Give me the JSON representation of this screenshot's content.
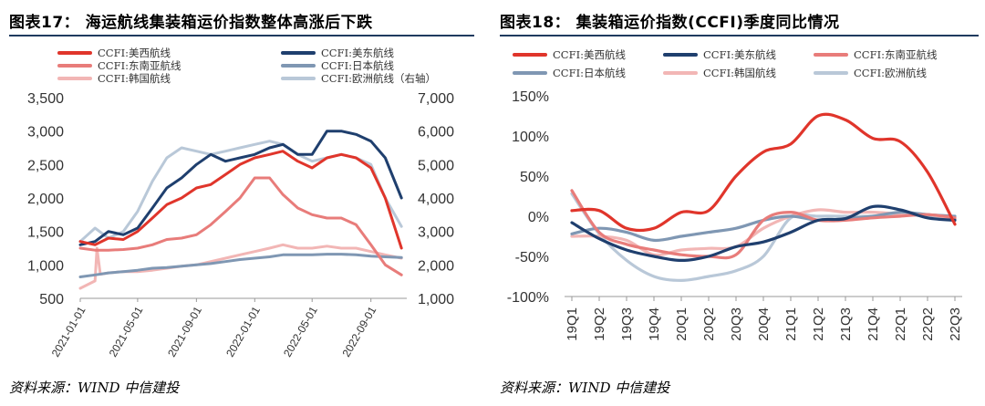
{
  "left": {
    "title": "图表17：  海运航线集装箱运价指数整体高涨后下跌",
    "source": "资料来源：WIND    中信建投",
    "legend": [
      {
        "name": "CCFI:美西航线",
        "color": "#e0352b"
      },
      {
        "name": "CCFI:美东航线",
        "color": "#1f3f6e"
      },
      {
        "name": "CCFI:东南亚航线",
        "color": "#e87c7a"
      },
      {
        "name": "CCFI:日本航线",
        "color": "#7f97b3"
      },
      {
        "name": "CCFI:韩国航线",
        "color": "#f2b6b5"
      },
      {
        "name": "CCFI:欧洲航线（右轴）",
        "color": "#b9c8d8"
      }
    ]
  },
  "right": {
    "title": "图表18：  集装箱运价指数(CCFI)季度同比情况",
    "source": "资料来源：WIND    中信建投",
    "legend": [
      {
        "name": "CCFI:美西航线",
        "color": "#e0352b"
      },
      {
        "name": "CCFI:美东航线",
        "color": "#1f3f6e"
      },
      {
        "name": "CCFI:东南亚航线",
        "color": "#e87c7a"
      },
      {
        "name": "CCFI:日本航线",
        "color": "#7f97b3"
      },
      {
        "name": "CCFI:韩国航线",
        "color": "#f2b6b5"
      },
      {
        "name": "CCFI:欧洲航线",
        "color": "#b9c8d8"
      }
    ]
  },
  "chart_data": [
    {
      "type": "line",
      "x_type": "date",
      "x_ticks": [
        "2021-01-01",
        "2021-05-01",
        "2021-09-01",
        "2022-01-01",
        "2022-05-01",
        "2022-09-01"
      ],
      "ylim": [
        500,
        3500
      ],
      "y_ticks": [
        500,
        1000,
        1500,
        2000,
        2500,
        3000,
        3500
      ],
      "y2lim": [
        1000,
        7000
      ],
      "y2_ticks": [
        1000,
        2000,
        3000,
        4000,
        5000,
        6000,
        7000
      ],
      "grid": false,
      "legend_position": "top",
      "series": [
        {
          "name": "CCFI:美西航线",
          "color": "#e0352b",
          "axis": "left",
          "x": [
            "2021-01-01",
            "2021-02-01",
            "2021-03-01",
            "2021-04-01",
            "2021-05-01",
            "2021-06-01",
            "2021-07-01",
            "2021-08-01",
            "2021-09-01",
            "2021-10-01",
            "2021-11-01",
            "2021-12-01",
            "2022-01-01",
            "2022-02-01",
            "2022-03-01",
            "2022-04-01",
            "2022-05-01",
            "2022-06-01",
            "2022-07-01",
            "2022-08-01",
            "2022-09-01",
            "2022-10-01",
            "2022-11-04"
          ],
          "y": [
            1350,
            1300,
            1400,
            1380,
            1500,
            1700,
            1900,
            2000,
            2150,
            2200,
            2350,
            2500,
            2600,
            2650,
            2700,
            2550,
            2450,
            2600,
            2650,
            2600,
            2450,
            2000,
            1250
          ]
        },
        {
          "name": "CCFI:美东航线",
          "color": "#1f3f6e",
          "axis": "left",
          "x": [
            "2021-01-01",
            "2021-02-01",
            "2021-03-01",
            "2021-04-01",
            "2021-05-01",
            "2021-06-01",
            "2021-07-01",
            "2021-08-01",
            "2021-09-01",
            "2021-10-01",
            "2021-11-01",
            "2021-12-01",
            "2022-01-01",
            "2022-02-01",
            "2022-03-01",
            "2022-04-01",
            "2022-05-01",
            "2022-06-01",
            "2022-07-01",
            "2022-08-01",
            "2022-09-01",
            "2022-10-01",
            "2022-11-04"
          ],
          "y": [
            1300,
            1350,
            1500,
            1450,
            1550,
            1850,
            2150,
            2300,
            2500,
            2650,
            2550,
            2600,
            2650,
            2750,
            2800,
            2650,
            2650,
            3000,
            3000,
            2950,
            2850,
            2600,
            2000
          ]
        },
        {
          "name": "CCFI:东南亚航线",
          "color": "#e87c7a",
          "axis": "left",
          "x": [
            "2021-01-01",
            "2021-02-01",
            "2021-03-01",
            "2021-04-01",
            "2021-05-01",
            "2021-06-01",
            "2021-07-01",
            "2021-08-01",
            "2021-09-01",
            "2021-10-01",
            "2021-11-01",
            "2021-12-01",
            "2022-01-01",
            "2022-02-01",
            "2022-03-01",
            "2022-04-01",
            "2022-05-01",
            "2022-06-01",
            "2022-07-01",
            "2022-08-01",
            "2022-09-01",
            "2022-10-01",
            "2022-11-04"
          ],
          "y": [
            1250,
            1220,
            1220,
            1230,
            1250,
            1300,
            1380,
            1400,
            1450,
            1600,
            1800,
            2000,
            2300,
            2300,
            2050,
            1850,
            1750,
            1700,
            1700,
            1600,
            1300,
            1000,
            850
          ]
        },
        {
          "name": "CCFI:日本航线",
          "color": "#7f97b3",
          "axis": "left",
          "x": [
            "2021-01-01",
            "2021-02-01",
            "2021-03-01",
            "2021-04-01",
            "2021-05-01",
            "2021-06-01",
            "2021-07-01",
            "2021-08-01",
            "2021-09-01",
            "2021-10-01",
            "2021-11-01",
            "2021-12-01",
            "2022-01-01",
            "2022-02-01",
            "2022-03-01",
            "2022-04-01",
            "2022-05-01",
            "2022-06-01",
            "2022-07-01",
            "2022-08-01",
            "2022-09-01",
            "2022-10-01",
            "2022-11-04"
          ],
          "y": [
            820,
            850,
            880,
            900,
            920,
            950,
            960,
            980,
            1000,
            1020,
            1050,
            1080,
            1100,
            1120,
            1150,
            1150,
            1150,
            1160,
            1160,
            1150,
            1130,
            1120,
            1110
          ]
        },
        {
          "name": "CCFI:韩国航线",
          "color": "#f2b6b5",
          "axis": "left",
          "x": [
            "2021-01-01",
            "2021-02-01",
            "2021-02-05",
            "2021-02-12",
            "2021-03-01",
            "2021-04-01",
            "2021-05-01",
            "2021-06-01",
            "2021-07-01",
            "2021-08-01",
            "2021-09-01",
            "2021-10-01",
            "2021-11-01",
            "2021-12-01",
            "2022-01-01",
            "2022-02-01",
            "2022-03-01",
            "2022-04-01",
            "2022-05-01",
            "2022-06-01",
            "2022-07-01",
            "2022-08-01",
            "2022-09-01",
            "2022-10-01",
            "2022-11-04"
          ],
          "y": [
            650,
            760,
            1250,
            860,
            880,
            900,
            900,
            920,
            950,
            980,
            1000,
            1050,
            1100,
            1150,
            1200,
            1250,
            1300,
            1250,
            1250,
            1280,
            1250,
            1250,
            1200,
            1150,
            1100
          ]
        },
        {
          "name": "CCFI:欧洲航线（右轴）",
          "color": "#b9c8d8",
          "axis": "right",
          "x": [
            "2021-01-01",
            "2021-02-01",
            "2021-03-01",
            "2021-04-01",
            "2021-05-01",
            "2021-06-01",
            "2021-07-01",
            "2021-08-01",
            "2021-09-01",
            "2021-10-01",
            "2021-11-01",
            "2021-12-01",
            "2022-01-01",
            "2022-02-01",
            "2022-03-01",
            "2022-04-01",
            "2022-05-01",
            "2022-06-01",
            "2022-07-01",
            "2022-08-01",
            "2022-09-01",
            "2022-10-01",
            "2022-11-04"
          ],
          "y": [
            2700,
            3100,
            2800,
            3000,
            3600,
            4500,
            5200,
            5500,
            5400,
            5300,
            5400,
            5500,
            5600,
            5700,
            5600,
            5300,
            5100,
            5200,
            5300,
            5200,
            5000,
            4000,
            3150
          ]
        }
      ]
    },
    {
      "type": "line",
      "categories": [
        "19Q1",
        "19Q2",
        "19Q3",
        "19Q4",
        "20Q1",
        "20Q2",
        "20Q3",
        "20Q4",
        "21Q1",
        "21Q2",
        "21Q3",
        "21Q4",
        "22Q1",
        "22Q2",
        "22Q3"
      ],
      "ylim": [
        -100,
        150
      ],
      "y_ticks": [
        "-100%",
        "-50%",
        "0%",
        "50%",
        "100%",
        "150%"
      ],
      "y_tick_values": [
        -100,
        -50,
        0,
        50,
        100,
        150
      ],
      "grid": false,
      "legend_position": "top",
      "series": [
        {
          "name": "CCFI:美西航线",
          "color": "#e0352b",
          "values": [
            7,
            7,
            -15,
            -15,
            5,
            7,
            50,
            80,
            90,
            125,
            120,
            97,
            93,
            55,
            -10
          ]
        },
        {
          "name": "CCFI:美东航线",
          "color": "#1f3f6e",
          "values": [
            -8,
            -28,
            -42,
            -50,
            -55,
            -50,
            -38,
            -32,
            -20,
            -5,
            -3,
            12,
            8,
            -2,
            -5
          ]
        },
        {
          "name": "CCFI:东南亚航线",
          "color": "#e87c7a",
          "values": [
            32,
            -20,
            -35,
            -42,
            -48,
            -50,
            -48,
            -5,
            5,
            -5,
            -5,
            -2,
            0,
            2,
            -2
          ]
        },
        {
          "name": "CCFI:日本航线",
          "color": "#7f97b3",
          "values": [
            -22,
            -15,
            -20,
            -30,
            -25,
            -20,
            -15,
            -5,
            0,
            -5,
            -3,
            0,
            5,
            2,
            0
          ]
        },
        {
          "name": "CCFI:韩国航线",
          "color": "#f2b6b5",
          "values": [
            -25,
            -25,
            -30,
            -48,
            -42,
            -40,
            -38,
            -15,
            0,
            8,
            5,
            5,
            3,
            2,
            -3
          ]
        },
        {
          "name": "CCFI:欧洲航线",
          "color": "#b9c8d8",
          "values": [
            28,
            -22,
            -55,
            -75,
            -80,
            -75,
            -68,
            -50,
            -2,
            0,
            0,
            0,
            2,
            0,
            -3
          ]
        }
      ]
    }
  ]
}
